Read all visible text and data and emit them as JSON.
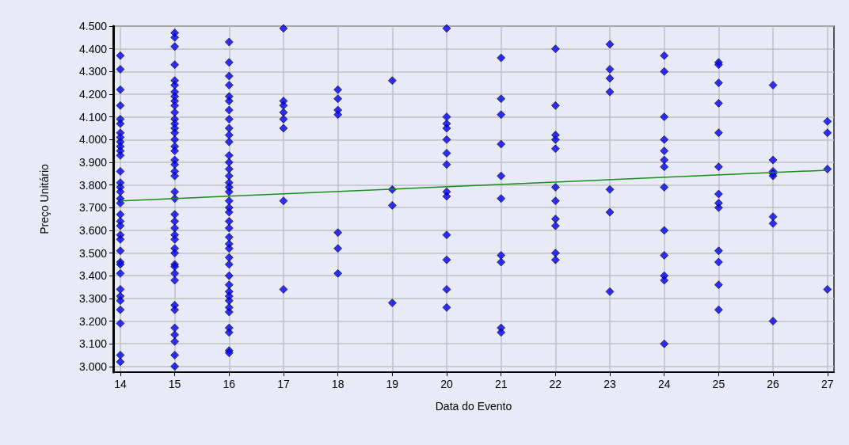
{
  "chart_data": {
    "type": "scatter",
    "xlabel": "Data do Evento",
    "ylabel": "Preço Unitário",
    "xlim": [
      13.87,
      27.12
    ],
    "xticks": [
      14,
      15,
      16,
      17,
      18,
      19,
      20,
      21,
      22,
      23,
      24,
      25,
      26,
      27
    ],
    "ylim": [
      2.975,
      4.5
    ],
    "yticks": [
      {
        "value": 3.0,
        "label": "3.000"
      },
      {
        "value": 3.1,
        "label": "3.100"
      },
      {
        "value": 3.2,
        "label": "3.200"
      },
      {
        "value": 3.3,
        "label": "3.300"
      },
      {
        "value": 3.4,
        "label": "3.400"
      },
      {
        "value": 3.5,
        "label": "3.500"
      },
      {
        "value": 3.6,
        "label": "3.600"
      },
      {
        "value": 3.7,
        "label": "3.700"
      },
      {
        "value": 3.8,
        "label": "3.800"
      },
      {
        "value": 3.9,
        "label": "3.900"
      },
      {
        "value": 4.0,
        "label": "4.000"
      },
      {
        "value": 4.1,
        "label": "4.100"
      },
      {
        "value": 4.2,
        "label": "4.200"
      },
      {
        "value": 4.3,
        "label": "4.300"
      },
      {
        "value": 4.4,
        "label": "4.400"
      },
      {
        "value": 4.5,
        "label": "4.500"
      }
    ],
    "grid": true,
    "marker": "diamond",
    "series": [
      {
        "color": "#0000ff",
        "x": [
          14,
          14,
          14,
          14,
          14,
          14,
          14,
          14,
          14,
          14,
          14,
          14,
          14,
          14,
          14,
          14,
          14,
          14,
          14,
          14,
          14,
          14,
          14,
          14,
          14,
          14,
          14,
          14,
          14,
          14,
          14,
          14,
          14,
          14,
          15,
          15,
          15,
          15,
          15,
          15,
          15,
          15,
          15,
          15,
          15,
          15,
          15,
          15,
          15,
          15,
          15,
          15,
          15,
          15,
          15,
          15,
          15,
          15,
          15,
          15,
          15,
          15,
          15,
          15,
          15,
          15,
          15,
          15,
          15,
          15,
          15,
          15,
          15,
          15,
          15,
          15,
          16,
          16,
          16,
          16,
          16,
          16,
          16,
          16,
          16,
          16,
          16,
          16,
          16,
          16,
          16,
          16,
          16,
          16,
          16,
          16,
          16,
          16,
          16,
          16,
          16,
          16,
          16,
          16,
          16,
          16,
          16,
          16,
          16,
          16,
          16,
          16,
          16,
          16,
          16,
          17,
          17,
          17,
          17,
          17,
          17,
          17,
          17,
          18,
          18,
          18,
          18,
          18,
          18,
          18,
          19,
          19,
          19,
          19,
          20,
          20,
          20,
          20,
          20,
          20,
          20,
          20,
          20,
          20,
          20,
          20,
          20,
          21,
          21,
          21,
          21,
          21,
          21,
          21,
          21,
          21,
          21,
          22,
          22,
          22,
          22,
          22,
          22,
          22,
          22,
          22,
          22,
          22,
          23,
          23,
          23,
          23,
          23,
          23,
          23,
          24,
          24,
          24,
          24,
          24,
          24,
          24,
          24,
          24,
          24,
          24,
          24,
          24,
          25,
          25,
          25,
          25,
          25,
          25,
          25,
          25,
          25,
          25,
          25,
          25,
          25,
          26,
          26,
          26,
          26,
          26,
          26,
          26,
          26,
          27,
          27,
          27,
          27
        ],
        "values": [
          4.37,
          4.31,
          4.22,
          4.15,
          4.09,
          4.07,
          4.03,
          4.01,
          3.99,
          3.97,
          3.95,
          3.93,
          3.86,
          3.81,
          3.79,
          3.77,
          3.74,
          3.72,
          3.67,
          3.64,
          3.62,
          3.58,
          3.56,
          3.51,
          3.46,
          3.45,
          3.41,
          3.34,
          3.31,
          3.29,
          3.25,
          3.19,
          3.05,
          3.02,
          4.47,
          4.45,
          4.41,
          4.33,
          4.26,
          4.24,
          4.21,
          4.19,
          4.17,
          4.15,
          4.12,
          4.09,
          4.07,
          4.05,
          4.03,
          4.0,
          3.97,
          3.95,
          3.91,
          3.89,
          3.86,
          3.84,
          3.77,
          3.74,
          3.67,
          3.64,
          3.61,
          3.58,
          3.56,
          3.52,
          3.5,
          3.45,
          3.44,
          3.41,
          3.38,
          3.27,
          3.25,
          3.17,
          3.14,
          3.11,
          3.05,
          3.0,
          4.43,
          4.34,
          4.28,
          4.24,
          4.19,
          4.17,
          4.13,
          4.09,
          4.05,
          4.02,
          3.99,
          3.93,
          3.9,
          3.87,
          3.84,
          3.81,
          3.79,
          3.77,
          3.73,
          3.7,
          3.68,
          3.64,
          3.61,
          3.57,
          3.54,
          3.52,
          3.48,
          3.45,
          3.4,
          3.36,
          3.33,
          3.31,
          3.29,
          3.26,
          3.24,
          3.17,
          3.15,
          3.07,
          3.06,
          4.49,
          4.17,
          4.15,
          4.12,
          4.09,
          4.05,
          3.73,
          3.34,
          4.22,
          4.18,
          4.13,
          4.11,
          3.59,
          3.52,
          3.41,
          4.26,
          3.78,
          3.71,
          3.28,
          4.49,
          4.1,
          4.07,
          4.05,
          4.0,
          3.94,
          3.89,
          3.77,
          3.75,
          3.58,
          3.47,
          3.34,
          3.26,
          4.36,
          4.18,
          4.11,
          3.98,
          3.84,
          3.74,
          3.49,
          3.46,
          3.17,
          3.15,
          4.4,
          4.15,
          4.02,
          4.0,
          3.96,
          3.79,
          3.73,
          3.65,
          3.62,
          3.5,
          3.47,
          4.42,
          4.31,
          4.27,
          4.21,
          3.78,
          3.68,
          3.33,
          4.37,
          4.3,
          4.1,
          4.0,
          3.95,
          3.91,
          3.88,
          3.79,
          3.6,
          3.49,
          3.4,
          3.38,
          3.1,
          4.34,
          4.33,
          4.25,
          4.16,
          4.03,
          3.88,
          3.76,
          3.72,
          3.7,
          3.51,
          3.46,
          3.36,
          3.25,
          4.24,
          3.91,
          3.86,
          3.85,
          3.84,
          3.66,
          3.63,
          3.2,
          4.08,
          4.03,
          3.87,
          3.34
        ]
      },
      {
        "type": "line",
        "color": "#1a8c1a",
        "marker": "none",
        "x": [
          14,
          27
        ],
        "values": [
          3.73,
          3.865
        ]
      }
    ]
  }
}
